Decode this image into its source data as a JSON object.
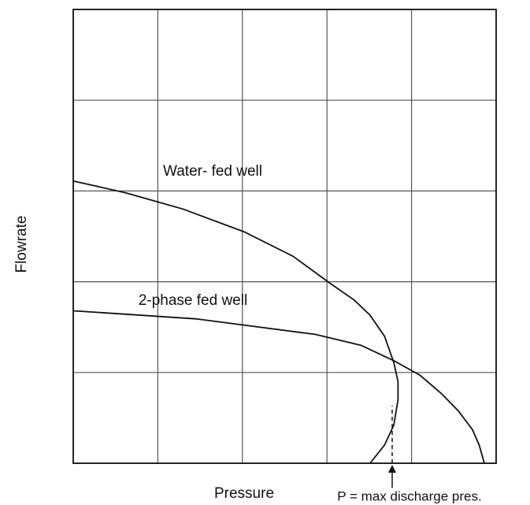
{
  "chart_data": {
    "type": "line",
    "x_label": "Pressure",
    "y_label": "Flowrate",
    "annotation": "P = max discharge pres.",
    "xlim": [
      0,
      5
    ],
    "ylim": [
      0,
      5
    ],
    "xticks": [
      0,
      1,
      2,
      3,
      4,
      5
    ],
    "yticks": [
      0,
      1,
      2,
      3,
      4,
      5
    ],
    "grid": true,
    "series": [
      {
        "name": "Water- fed well",
        "color": "#111111",
        "x": [
          0,
          0.62,
          1.3,
          2.02,
          2.6,
          3.04,
          3.32,
          3.51,
          3.68,
          3.79,
          3.84,
          3.84,
          3.79,
          3.68,
          3.51
        ],
        "values": [
          3.11,
          2.98,
          2.8,
          2.55,
          2.28,
          1.98,
          1.8,
          1.63,
          1.4,
          1.11,
          0.9,
          0.7,
          0.42,
          0.2,
          0
        ]
      },
      {
        "name": "2-phase fed well",
        "color": "#111111",
        "x": [
          0,
          1.46,
          2.86,
          3.4,
          3.79,
          4.1,
          4.35,
          4.55,
          4.72,
          4.8,
          4.86
        ],
        "values": [
          1.68,
          1.59,
          1.42,
          1.3,
          1.13,
          0.97,
          0.77,
          0.58,
          0.37,
          0.2,
          0
        ]
      }
    ]
  }
}
